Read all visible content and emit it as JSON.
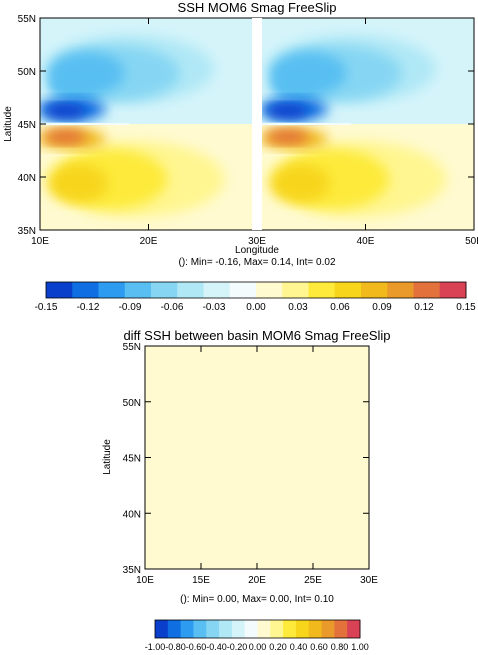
{
  "palette": [
    "#0a3fcb",
    "#0f6fe2",
    "#2d9bef",
    "#59bff2",
    "#86d6f3",
    "#b0e8f6",
    "#d4f4fa",
    "#f4fbfc",
    "#fffad0",
    "#fff691",
    "#fdea3a",
    "#f7d51b",
    "#f1b91b",
    "#ea9a2a",
    "#e2713b",
    "#d94155"
  ],
  "top": {
    "title": "SSH MOM6 Smag FreeSlip",
    "ylabel": "Latitude",
    "xlabel": "Longitude",
    "stats": "(): Min= -0.16, Max= 0.14, Int= 0.02",
    "y_ticks": [
      "35N",
      "40N",
      "45N",
      "50N",
      "55N"
    ],
    "x_ticks": [
      "10E",
      "20E",
      "30E",
      "40E",
      "50E"
    ]
  },
  "colorbar_top": {
    "labels": [
      "-0.15",
      "-0.12",
      "-0.09",
      "-0.06",
      "-0.03",
      "0.00",
      "0.03",
      "0.06",
      "0.09",
      "0.12",
      "0.15"
    ]
  },
  "bottom": {
    "title": "diff SSH between basin MOM6 Smag FreeSlip",
    "ylabel": "Latitude",
    "stats": "(): Min= 0.00, Max= 0.00, Int= 0.10",
    "y_ticks": [
      "35N",
      "40N",
      "45N",
      "50N",
      "55N"
    ],
    "x_ticks": [
      "10E",
      "15E",
      "20E",
      "25E",
      "30E"
    ],
    "fill_color": "#fffad0"
  },
  "colorbar_bottom": {
    "labels": [
      "-1.00",
      "-0.80",
      "-0.60",
      "-0.40",
      "-0.20",
      "0.00",
      "0.20",
      "0.40",
      "0.60",
      "0.80",
      "1.00"
    ]
  },
  "chart_data": [
    {
      "type": "heatmap",
      "title": "SSH MOM6 Smag FreeSlip",
      "xlabel": "Longitude",
      "ylabel": "Latitude",
      "xlim": [
        10,
        51
      ],
      "ylim": [
        35,
        55
      ],
      "x_ticks": [
        "10E",
        "20E",
        "30E",
        "40E",
        "50E"
      ],
      "y_ticks": [
        "35N",
        "40N",
        "45N",
        "50N",
        "55N"
      ],
      "panels": [
        "basin 10E-30E",
        "basin 31E-51E"
      ],
      "min": -0.16,
      "max": 0.14,
      "interval": 0.02,
      "color_levels": [
        -0.15,
        -0.12,
        -0.09,
        -0.06,
        -0.03,
        0.0,
        0.03,
        0.06,
        0.09,
        0.12,
        0.15
      ],
      "features": {
        "negative_gyre_latitudes": [
          45,
          55
        ],
        "positive_gyre_latitudes": [
          35,
          45
        ],
        "min_center": [
          12,
          46
        ],
        "max_center": [
          12,
          44
        ]
      }
    },
    {
      "type": "heatmap",
      "title": "diff SSH between basin MOM6 Smag FreeSlip",
      "ylabel": "Latitude",
      "xlim": [
        10,
        30
      ],
      "ylim": [
        35,
        55
      ],
      "x_ticks": [
        "10E",
        "15E",
        "20E",
        "25E",
        "30E"
      ],
      "y_ticks": [
        "35N",
        "40N",
        "45N",
        "50N",
        "55N"
      ],
      "min": 0.0,
      "max": 0.0,
      "interval": 0.1,
      "value": 0.0,
      "color_levels": [
        -1.0,
        -0.8,
        -0.6,
        -0.4,
        -0.2,
        0.0,
        0.2,
        0.4,
        0.6,
        0.8,
        1.0
      ]
    }
  ]
}
